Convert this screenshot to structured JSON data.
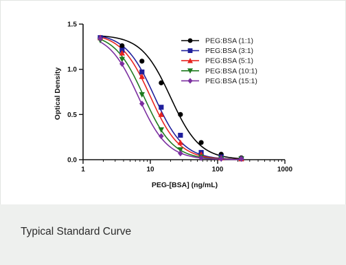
{
  "caption": "Typical Standard Curve",
  "chart_data": {
    "type": "scatter",
    "xlabel": "PEG-[BSA] (ng/mL)",
    "ylabel": "Optical Density",
    "xscale": "log",
    "xlim": [
      1,
      1000
    ],
    "ylim": [
      0.0,
      1.5
    ],
    "xticks": [
      1,
      10,
      100,
      1000
    ],
    "xtick_labels": [
      "1",
      "10",
      "100",
      "1000"
    ],
    "yticks": [
      0.0,
      0.5,
      1.0,
      1.5
    ],
    "ytick_labels": [
      "0.0",
      "0.5",
      "1.0",
      "1.5"
    ],
    "grid": false,
    "legend_position": "top-right",
    "series": [
      {
        "name": "PEG:BSA (1:1)",
        "color": "#000000",
        "marker": "circle",
        "x": [
          1.8,
          3.8,
          7.5,
          14.5,
          28,
          57,
          113,
          225
        ],
        "y": [
          1.35,
          1.26,
          1.09,
          0.85,
          0.5,
          0.19,
          0.06,
          0.02
        ],
        "curve": {
          "top": 1.38,
          "bottom": 0.0,
          "ec50": 20,
          "hill": 2.0
        }
      },
      {
        "name": "PEG:BSA (3:1)",
        "color": "#1f1f9c",
        "marker": "square",
        "x": [
          1.8,
          3.8,
          7.5,
          14.5,
          28,
          57,
          113,
          225
        ],
        "y": [
          1.35,
          1.21,
          0.97,
          0.58,
          0.27,
          0.08,
          0.03,
          0.01
        ],
        "curve": {
          "top": 1.4,
          "bottom": 0.0,
          "ec50": 11.5,
          "hill": 2.0
        }
      },
      {
        "name": "PEG:BSA (5:1)",
        "color": "#e8231f",
        "marker": "triangle-up",
        "x": [
          1.8,
          3.8,
          7.5,
          14.5,
          28,
          57,
          113,
          225
        ],
        "y": [
          1.35,
          1.18,
          0.92,
          0.5,
          0.19,
          0.06,
          0.02,
          0.01
        ],
        "curve": {
          "top": 1.4,
          "bottom": 0.0,
          "ec50": 10,
          "hill": 2.0
        }
      },
      {
        "name": "PEG:BSA (10:1)",
        "color": "#1e7a1e",
        "marker": "triangle-down",
        "x": [
          1.8,
          3.8,
          7.5,
          14.5,
          28,
          57,
          113,
          225
        ],
        "y": [
          1.32,
          1.11,
          0.72,
          0.33,
          0.11,
          0.03,
          0.01,
          0.01
        ],
        "curve": {
          "top": 1.4,
          "bottom": 0.0,
          "ec50": 8,
          "hill": 2.0
        }
      },
      {
        "name": "PEG:BSA (15:1)",
        "color": "#7b2fa0",
        "marker": "diamond",
        "x": [
          1.8,
          3.8,
          7.5,
          14.5,
          28,
          57,
          113,
          225
        ],
        "y": [
          1.34,
          1.06,
          0.62,
          0.26,
          0.07,
          0.02,
          0.01,
          0.01
        ],
        "curve": {
          "top": 1.4,
          "bottom": 0.0,
          "ec50": 6.6,
          "hill": 2.0
        }
      }
    ]
  }
}
